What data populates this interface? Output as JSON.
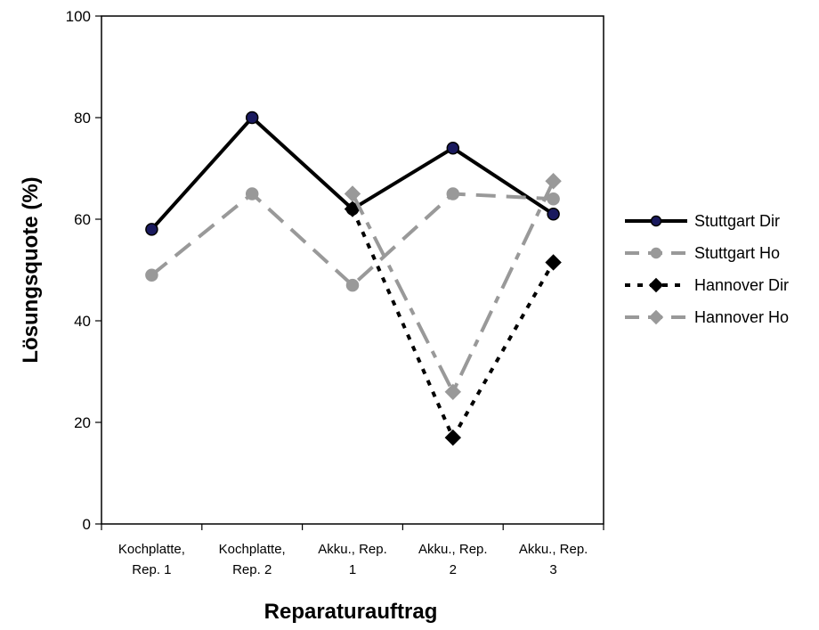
{
  "chart_data": {
    "type": "line",
    "title": "",
    "xlabel": "Reparaturauftrag",
    "ylabel": "Lösungsquote (%)",
    "ylim": [
      0,
      100
    ],
    "yticks": [
      "0",
      "20",
      "40",
      "60",
      "80",
      "100"
    ],
    "grid": false,
    "legend_position": "right",
    "categories": [
      [
        "Kochplatte,",
        "Rep. 1"
      ],
      [
        "Kochplatte,",
        "Rep. 2"
      ],
      [
        "Akku., Rep.",
        "1"
      ],
      [
        "Akku., Rep.",
        "2"
      ],
      [
        "Akku., Rep.",
        "3"
      ]
    ],
    "series": [
      {
        "name": "Stuttgart Dir",
        "values": [
          58,
          80,
          62,
          74,
          61
        ],
        "color": "#000000",
        "dash": "solid",
        "marker": "circle",
        "marker_color": "#1a1a5e"
      },
      {
        "name": "Stuttgart Ho",
        "values": [
          49,
          65,
          47,
          65,
          64
        ],
        "color": "#999999",
        "dash": "dash",
        "marker": "circle",
        "marker_color": "#999999"
      },
      {
        "name": "Hannover Dir",
        "values": [
          null,
          null,
          62,
          17,
          51.5
        ],
        "color": "#000000",
        "dash": "dot",
        "marker": "diamond",
        "marker_color": "#000000"
      },
      {
        "name": "Hannover Ho",
        "values": [
          null,
          null,
          65,
          26,
          67.5
        ],
        "color": "#999999",
        "dash": "dashdot",
        "marker": "diamond",
        "marker_color": "#999999"
      }
    ]
  }
}
